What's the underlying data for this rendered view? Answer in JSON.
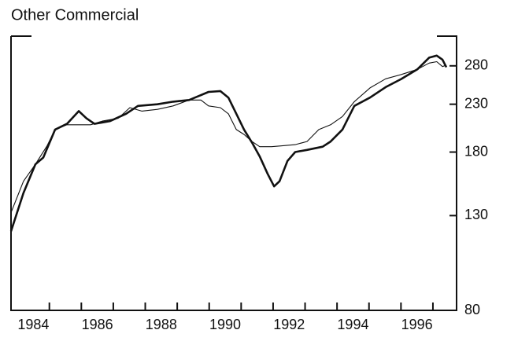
{
  "chart_data": {
    "type": "line",
    "title": "Other Commercial",
    "xlim": [
      1983.8,
      1997.74
    ],
    "ylim": [
      80,
      326
    ],
    "log_y": true,
    "xticks": [
      {
        "value": 1984.5,
        "label": "1984"
      },
      {
        "value": 1986.5,
        "label": "1986"
      },
      {
        "value": 1988.5,
        "label": "1988"
      },
      {
        "value": 1990.5,
        "label": "1990"
      },
      {
        "value": 1992.5,
        "label": "1992"
      },
      {
        "value": 1994.5,
        "label": "1994"
      },
      {
        "value": 1996.5,
        "label": "1996"
      }
    ],
    "xminorticks": [
      1985,
      1986,
      1987,
      1988,
      1989,
      1990,
      1991,
      1992,
      1993,
      1994,
      1995,
      1996,
      1997
    ],
    "yticks": [
      80,
      130,
      180,
      230,
      280
    ],
    "series": [
      {
        "color": "#111111",
        "width": 2.6,
        "x": [
          1983.8,
          1984.19,
          1984.56,
          1984.81,
          1985.18,
          1985.55,
          1985.92,
          1986.16,
          1986.41,
          1986.9,
          1987.4,
          1987.77,
          1988.38,
          1988.87,
          1989.37,
          1989.98,
          1990.35,
          1990.6,
          1990.85,
          1991.09,
          1991.34,
          1991.58,
          1991.83,
          1992.03,
          1992.2,
          1992.45,
          1992.69,
          1993.06,
          1993.55,
          1993.8,
          1994.17,
          1994.54,
          1995.03,
          1995.52,
          1996.02,
          1996.51,
          1996.88,
          1997.12,
          1997.3,
          1997.42
        ],
        "values": [
          120,
          146,
          169,
          175,
          202,
          208,
          222,
          214,
          208,
          211,
          219,
          228,
          230,
          233,
          235,
          245,
          246,
          238,
          219,
          202,
          189,
          176,
          161,
          151,
          155,
          172,
          180,
          182,
          185,
          190,
          202,
          228,
          238,
          251,
          262,
          275,
          292,
          295,
          289,
          278
        ]
      },
      {
        "color": "#111111",
        "width": 1.1,
        "x": [
          1983.8,
          1984.19,
          1984.56,
          1984.93,
          1985.18,
          1985.55,
          1985.92,
          1986.29,
          1986.66,
          1987.15,
          1987.52,
          1987.89,
          1988.38,
          1988.87,
          1989.37,
          1989.74,
          1989.98,
          1990.35,
          1990.6,
          1990.85,
          1991.09,
          1991.34,
          1991.58,
          1991.95,
          1992.32,
          1992.69,
          1993.06,
          1993.43,
          1993.8,
          1994.17,
          1994.54,
          1995.03,
          1995.52,
          1996.02,
          1996.51,
          1996.88,
          1997.12,
          1997.3,
          1997.42
        ],
        "values": [
          132,
          155,
          169,
          186,
          202,
          207,
          207,
          207,
          211,
          214,
          226,
          222,
          224,
          228,
          235,
          235,
          228,
          226,
          219,
          202,
          197,
          190,
          185,
          185,
          186,
          187,
          190,
          202,
          207,
          216,
          233,
          250,
          262,
          268,
          275,
          284,
          286,
          279,
          281
        ]
      }
    ]
  }
}
